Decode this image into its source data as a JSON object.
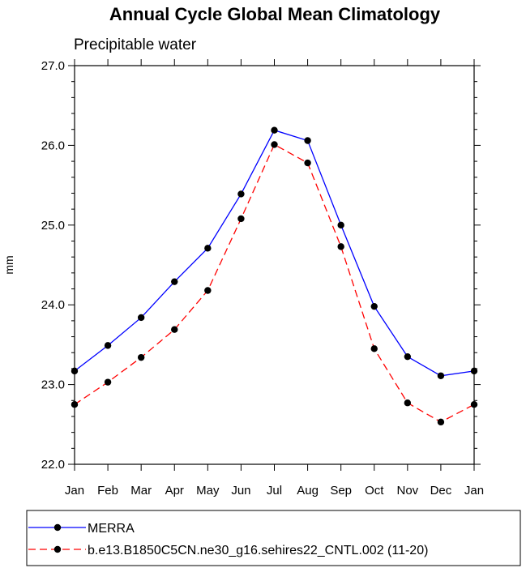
{
  "chart_data": {
    "type": "line",
    "title": "Annual Cycle Global Mean Climatology",
    "subtitle": "Precipitable water",
    "xlabel": "",
    "ylabel": "mm",
    "categories": [
      "Jan",
      "Feb",
      "Mar",
      "Apr",
      "May",
      "Jun",
      "Jul",
      "Aug",
      "Sep",
      "Oct",
      "Nov",
      "Dec",
      "Jan"
    ],
    "ylim": [
      22.0,
      27.0
    ],
    "yticks": [
      "22.0",
      "23.0",
      "24.0",
      "25.0",
      "26.0",
      "27.0"
    ],
    "grid": false,
    "legend_position": "bottom",
    "series": [
      {
        "name": "MERRA",
        "color": "#0000ff",
        "dash": "solid",
        "values": [
          23.17,
          23.49,
          23.84,
          24.29,
          24.71,
          25.39,
          26.19,
          26.06,
          25.0,
          23.98,
          23.35,
          23.11,
          23.17
        ]
      },
      {
        "name": "b.e13.B1850C5CN.ne30_g16.sehires22_CNTL.002 (11-20)",
        "color": "#ff0000",
        "dash": "dashed",
        "values": [
          22.75,
          23.03,
          23.34,
          23.69,
          24.18,
          25.08,
          26.01,
          25.78,
          24.73,
          23.45,
          22.77,
          22.53,
          22.75
        ]
      }
    ]
  }
}
